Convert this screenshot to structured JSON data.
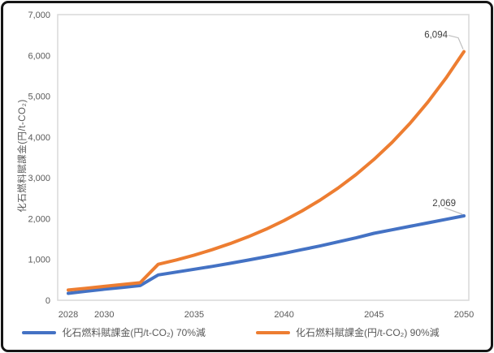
{
  "chart": {
    "y_axis_title": "化石燃料賦課金(円/t-CO₂)",
    "legend": [
      {
        "label": "化石燃料賦課金(円/t-CO₂) 70%減",
        "color": "#4472C4"
      },
      {
        "label": "化石燃料賦課金(円/t-CO₂) 90%減",
        "color": "#ED7D31"
      }
    ]
  },
  "chart_data": {
    "type": "line",
    "title": "",
    "xlabel": "",
    "ylabel": "化石燃料賦課金(円/t-CO₂)",
    "xlim": [
      2028,
      2050
    ],
    "ylim": [
      0,
      7000
    ],
    "grid": false,
    "legend_position": "bottom",
    "x": [
      2028,
      2029,
      2030,
      2031,
      2032,
      2033,
      2034,
      2035,
      2036,
      2037,
      2038,
      2039,
      2040,
      2041,
      2042,
      2043,
      2044,
      2045,
      2046,
      2047,
      2048,
      2049,
      2050
    ],
    "x_tick_years": [
      2028,
      2030,
      2035,
      2040,
      2045,
      2050
    ],
    "x_tick_labels": [
      "2028",
      "2030",
      "2035",
      "2040",
      "2045",
      "2050"
    ],
    "y_ticks": [
      0,
      1000,
      2000,
      3000,
      4000,
      5000,
      6000,
      7000
    ],
    "y_tick_labels": [
      "0",
      "1,000",
      "2,000",
      "3,000",
      "4,000",
      "5,000",
      "6,000",
      "7,000"
    ],
    "series": [
      {
        "name": "化石燃料賦課金(円/t-CO₂) 70%減",
        "color": "#4472C4",
        "end_label": "2,069",
        "end_value": 2069,
        "values": [
          170,
          220,
          270,
          315,
          360,
          620,
          690,
          760,
          830,
          905,
          985,
          1065,
          1150,
          1240,
          1330,
          1430,
          1530,
          1640,
          1726,
          1812,
          1898,
          1983,
          2069
        ]
      },
      {
        "name": "化石燃料賦課金(円/t-CO₂) 90%減",
        "color": "#ED7D31",
        "end_label": "6,094",
        "end_value": 6094,
        "values": [
          250,
          295,
          340,
          385,
          430,
          880,
          986,
          1105,
          1238,
          1388,
          1555,
          1743,
          1953,
          2189,
          2453,
          2749,
          3080,
          3452,
          3868,
          4335,
          4858,
          5444,
          6094
        ]
      }
    ]
  },
  "colors": {
    "axis_text": "#595959",
    "data_label_text": "#404040",
    "plot_border": "#D9D9D9",
    "leader_line": "#BFBFBF",
    "frame_border": "#151515"
  }
}
